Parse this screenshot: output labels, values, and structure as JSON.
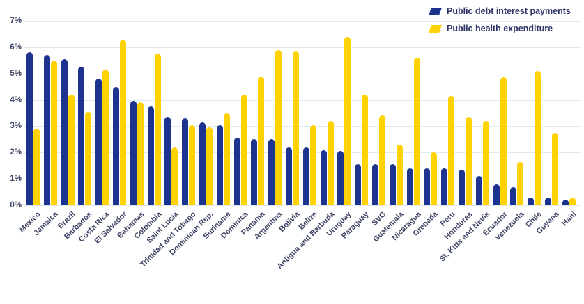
{
  "chart_data": {
    "type": "bar",
    "title": "",
    "xlabel": "",
    "ylabel": "",
    "ylim": [
      0,
      7
    ],
    "yticks": [
      "0%",
      "1%",
      "2%",
      "3%",
      "4%",
      "5%",
      "6%",
      "7%"
    ],
    "grid": true,
    "legend_position": "top-right",
    "categories": [
      "Mexico",
      "Jamaica",
      "Brazil",
      "Barbados",
      "Costa Rica",
      "El Salvador",
      "Bahamas",
      "Colombia",
      "Saint Lucia",
      "Trinidad and Tobago",
      "Dominican Rep.",
      "Suriname",
      "Dominica",
      "Panama",
      "Argentina",
      "Bolivia",
      "Belize",
      "Antigua and Barbuda",
      "Uruguay",
      "Paraguay",
      "SVG",
      "Guatemala",
      "Nicaragua",
      "Grenada",
      "Peru",
      "Honduras",
      "St. Kitts and Nevis",
      "Ecuador",
      "Venezuela",
      "Chile",
      "Guyana",
      "Haiti"
    ],
    "series": [
      {
        "name": "Public debt interest payments",
        "color": "#1d3390",
        "values": [
          5.8,
          5.7,
          5.55,
          5.25,
          4.8,
          4.5,
          3.95,
          3.75,
          3.35,
          3.3,
          3.15,
          3.05,
          2.55,
          2.5,
          2.5,
          2.2,
          2.2,
          2.1,
          2.05,
          1.55,
          1.55,
          1.55,
          1.4,
          1.4,
          1.4,
          1.35,
          1.1,
          0.8,
          0.7,
          0.3,
          0.3,
          0.2
        ]
      },
      {
        "name": "Public health expenditure",
        "color": "#ffd201",
        "values": [
          2.9,
          5.5,
          4.2,
          3.55,
          5.15,
          6.3,
          3.9,
          5.75,
          2.2,
          3.05,
          2.95,
          3.5,
          4.2,
          4.9,
          5.9,
          5.85,
          3.05,
          3.2,
          6.4,
          4.2,
          3.4,
          2.3,
          5.6,
          2.0,
          4.15,
          3.35,
          3.2,
          4.85,
          1.65,
          5.1,
          2.75,
          0.3
        ]
      }
    ]
  },
  "colors": {
    "bar_blue": "#1d3390",
    "bar_yellow": "#ffd201",
    "gridline": "#dde9f3",
    "axis_label": "#3f4565",
    "legend_text": "#2d3467",
    "background": "#ffffff"
  }
}
